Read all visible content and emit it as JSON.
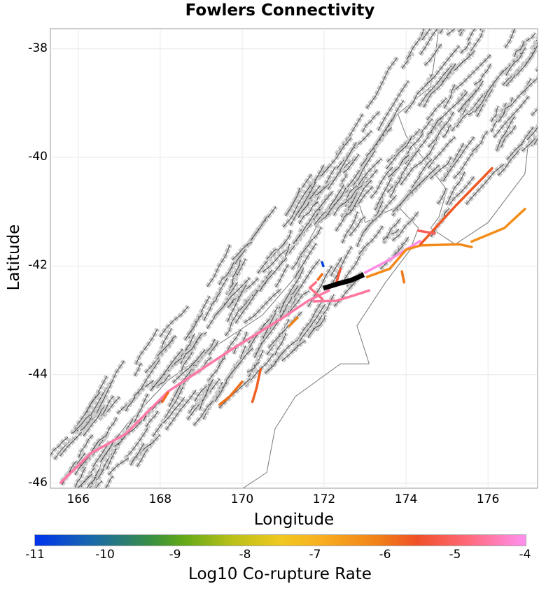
{
  "title": "Fowlers Connectivity",
  "chart_data": {
    "type": "map",
    "title": "Fowlers Connectivity",
    "xlabel": "Longitude",
    "ylabel": "Latitude",
    "xlim": [
      165.32,
      177.21
    ],
    "ylim": [
      -46.09,
      -37.63
    ],
    "x_ticks": [
      "166",
      "168",
      "170",
      "172",
      "174",
      "176"
    ],
    "y_ticks": [
      "-38",
      "-40",
      "-42",
      "-44",
      "-46"
    ],
    "x_tick_values": [
      166,
      168,
      170,
      172,
      174,
      176
    ],
    "y_tick_values": [
      -38,
      -40,
      -42,
      -44,
      -46
    ],
    "grid": true,
    "colorbar": {
      "label": "Log10 Co-rupture Rate",
      "range": [
        -11,
        -4
      ],
      "ticks": [
        "-11",
        "-10",
        "-9",
        "-8",
        "-7",
        "-6",
        "-5",
        "-4"
      ],
      "location": "bottom"
    },
    "source_fault": {
      "name": "Fowlers",
      "color": "#000000",
      "trace": [
        [
          171.98,
          -42.41
        ],
        [
          172.37,
          -42.32
        ],
        [
          172.66,
          -42.26
        ],
        [
          172.97,
          -42.16
        ]
      ]
    },
    "ruptures": [
      {
        "value": -4.6,
        "trace": [
          [
            165.57,
            -45.99
          ],
          [
            166.3,
            -45.45
          ],
          [
            167.16,
            -45.09
          ],
          [
            168.19,
            -44.31
          ],
          [
            169.73,
            -43.54
          ],
          [
            171.0,
            -42.95
          ],
          [
            171.61,
            -42.64
          ],
          [
            172.12,
            -42.45
          ]
        ]
      },
      {
        "value": -4.7,
        "trace": [
          [
            171.75,
            -42.65
          ],
          [
            172.3,
            -42.64
          ],
          [
            172.9,
            -42.5
          ],
          [
            173.1,
            -42.45
          ]
        ]
      },
      {
        "value": -4.1,
        "trace": [
          [
            173.0,
            -42.12
          ],
          [
            173.63,
            -41.87
          ],
          [
            174.34,
            -41.54
          ]
        ]
      },
      {
        "value": -6.3,
        "trace": [
          [
            173.05,
            -42.2
          ],
          [
            173.6,
            -42.05
          ],
          [
            174.0,
            -41.7
          ],
          [
            174.35,
            -41.62
          ],
          [
            175.3,
            -41.6
          ],
          [
            175.6,
            -41.65
          ]
        ]
      },
      {
        "value": -6.4,
        "trace": [
          [
            175.6,
            -41.55
          ],
          [
            176.4,
            -41.3
          ],
          [
            176.9,
            -40.95
          ]
        ]
      },
      {
        "value": -5.6,
        "trace": [
          [
            174.35,
            -41.6
          ],
          [
            175.2,
            -40.9
          ],
          [
            176.1,
            -40.2
          ]
        ]
      },
      {
        "value": -6.0,
        "trace": [
          [
            173.9,
            -42.1
          ],
          [
            173.95,
            -42.3
          ]
        ]
      },
      {
        "value": -5.8,
        "trace": [
          [
            168.19,
            -44.33
          ],
          [
            168.05,
            -44.5
          ]
        ]
      },
      {
        "value": -5.9,
        "trace": [
          [
            170.0,
            -44.13
          ],
          [
            169.7,
            -44.4
          ],
          [
            169.45,
            -44.55
          ]
        ]
      },
      {
        "value": -5.7,
        "trace": [
          [
            170.45,
            -43.9
          ],
          [
            170.35,
            -44.25
          ],
          [
            170.25,
            -44.5
          ]
        ]
      },
      {
        "value": -6.2,
        "trace": [
          [
            171.35,
            -42.95
          ],
          [
            171.15,
            -43.1
          ]
        ]
      },
      {
        "value": -4.9,
        "trace": [
          [
            171.8,
            -42.3
          ],
          [
            171.65,
            -42.4
          ],
          [
            171.95,
            -42.6
          ]
        ]
      },
      {
        "value": -5.9,
        "trace": [
          [
            171.95,
            -42.15
          ],
          [
            171.85,
            -42.25
          ]
        ]
      },
      {
        "value": -10.7,
        "trace": [
          [
            171.95,
            -41.93
          ],
          [
            171.98,
            -42.0
          ]
        ]
      },
      {
        "value": -5.2,
        "trace": [
          [
            174.3,
            -41.35
          ],
          [
            174.7,
            -41.4
          ]
        ]
      },
      {
        "value": -5.4,
        "trace": [
          [
            172.3,
            -42.3
          ],
          [
            172.4,
            -42.05
          ]
        ]
      }
    ],
    "coastline": [
      [
        [
          166.4,
          -46.1
        ],
        [
          166.6,
          -45.5
        ],
        [
          167.2,
          -44.9
        ],
        [
          168.2,
          -44.1
        ],
        [
          169.3,
          -43.5
        ],
        [
          170.5,
          -42.9
        ],
        [
          171.3,
          -42.2
        ],
        [
          171.5,
          -41.7
        ],
        [
          172.1,
          -40.9
        ],
        [
          172.7,
          -40.5
        ],
        [
          173.0,
          -41.2
        ],
        [
          173.8,
          -40.9
        ],
        [
          174.3,
          -41.3
        ],
        [
          174.1,
          -41.7
        ],
        [
          173.5,
          -42.3
        ],
        [
          172.8,
          -43.1
        ],
        [
          173.1,
          -43.8
        ],
        [
          172.4,
          -43.8
        ],
        [
          171.3,
          -44.4
        ],
        [
          170.8,
          -45.0
        ],
        [
          170.6,
          -45.8
        ],
        [
          170.0,
          -46.1
        ]
      ],
      [
        [
          174.6,
          -41.3
        ],
        [
          175.2,
          -41.6
        ],
        [
          176.0,
          -41.2
        ],
        [
          176.9,
          -40.3
        ],
        [
          177.0,
          -39.6
        ],
        [
          177.21,
          -39.4
        ]
      ],
      [
        [
          174.6,
          -41.3
        ],
        [
          174.8,
          -41.1
        ],
        [
          175.0,
          -40.6
        ],
        [
          174.0,
          -39.6
        ],
        [
          173.8,
          -39.2
        ],
        [
          174.6,
          -38.7
        ],
        [
          174.8,
          -37.63
        ]
      ]
    ]
  }
}
